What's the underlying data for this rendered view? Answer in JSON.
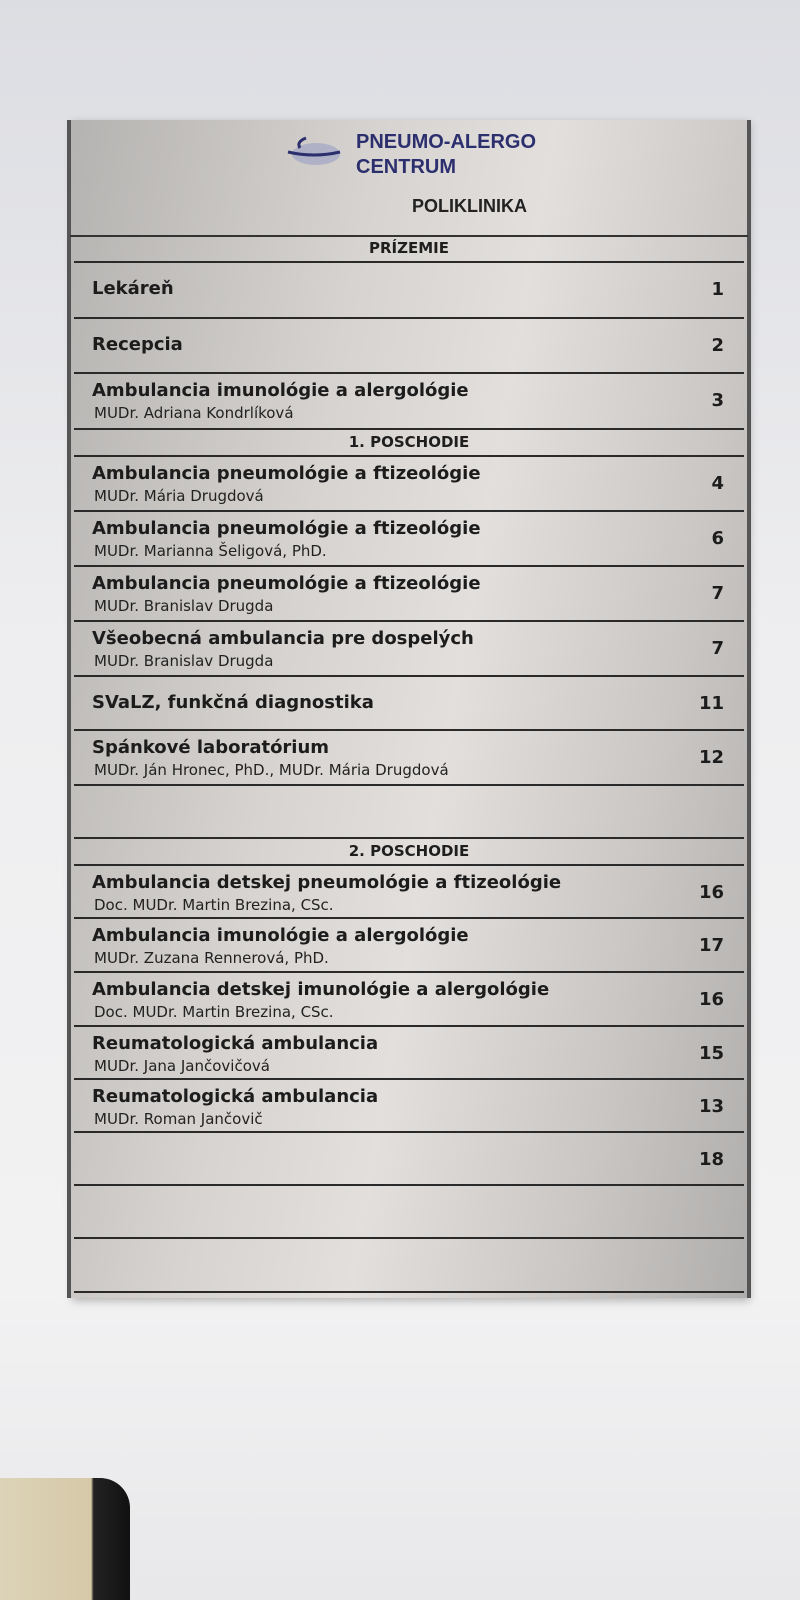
{
  "header": {
    "brand_line1": "PNEUMO-ALERGO",
    "brand_line2": "CENTRUM",
    "subtitle": "POLIKLINIKA",
    "brand_color": "#2c2f6e"
  },
  "sections": [
    {
      "label": "PRÍZEMIE",
      "rows": [
        {
          "title": "Lekáreň",
          "doctor": "",
          "number": "1"
        },
        {
          "title": "Recepcia",
          "doctor": "",
          "number": "2"
        },
        {
          "title": "Ambulancia imunológie a alergológie",
          "doctor": "MUDr. Adriana Kondrlíková",
          "number": "3"
        }
      ]
    },
    {
      "label": "1. POSCHODIE",
      "rows": [
        {
          "title": "Ambulancia pneumológie a ftizeológie",
          "doctor": "MUDr. Mária Drugdová",
          "number": "4"
        },
        {
          "title": "Ambulancia pneumológie a ftizeológie",
          "doctor": "MUDr. Marianna Šeligová, PhD.",
          "number": "6"
        },
        {
          "title": "Ambulancia pneumológie a ftizeológie",
          "doctor": "MUDr. Branislav Drugda",
          "number": "7"
        },
        {
          "title": "Všeobecná ambulancia pre dospelých",
          "doctor": "MUDr. Branislav Drugda",
          "number": "7"
        },
        {
          "title": "SVaLZ, funkčná diagnostika",
          "doctor": "",
          "number": "11"
        },
        {
          "title": "Spánkové laboratórium",
          "doctor": "MUDr. Ján Hronec, PhD., MUDr. Mária Drugdová",
          "number": "12"
        },
        {
          "title": "",
          "doctor": "",
          "number": ""
        }
      ]
    },
    {
      "label": "2. POSCHODIE",
      "rows": [
        {
          "title": "Ambulancia detskej pneumológie a ftizeológie",
          "doctor": "Doc. MUDr. Martin Brezina, CSc.",
          "number": "16"
        },
        {
          "title": "Ambulancia imunológie a alergológie",
          "doctor": "MUDr. Zuzana Rennerová, PhD.",
          "number": "17"
        },
        {
          "title": "Ambulancia detskej imunológie a alergológie",
          "doctor": "Doc. MUDr. Martin Brezina, CSc.",
          "number": "16"
        },
        {
          "title": "Reumatologická ambulancia",
          "doctor": "MUDr. Jana Jančovičová",
          "number": "15"
        },
        {
          "title": "Reumatologická ambulancia",
          "doctor": "MUDr. Roman Jančovič",
          "number": "13"
        },
        {
          "title": "",
          "doctor": "",
          "number": "18"
        },
        {
          "title": "",
          "doctor": "",
          "number": ""
        },
        {
          "title": "",
          "doctor": "",
          "number": ""
        }
      ]
    }
  ]
}
